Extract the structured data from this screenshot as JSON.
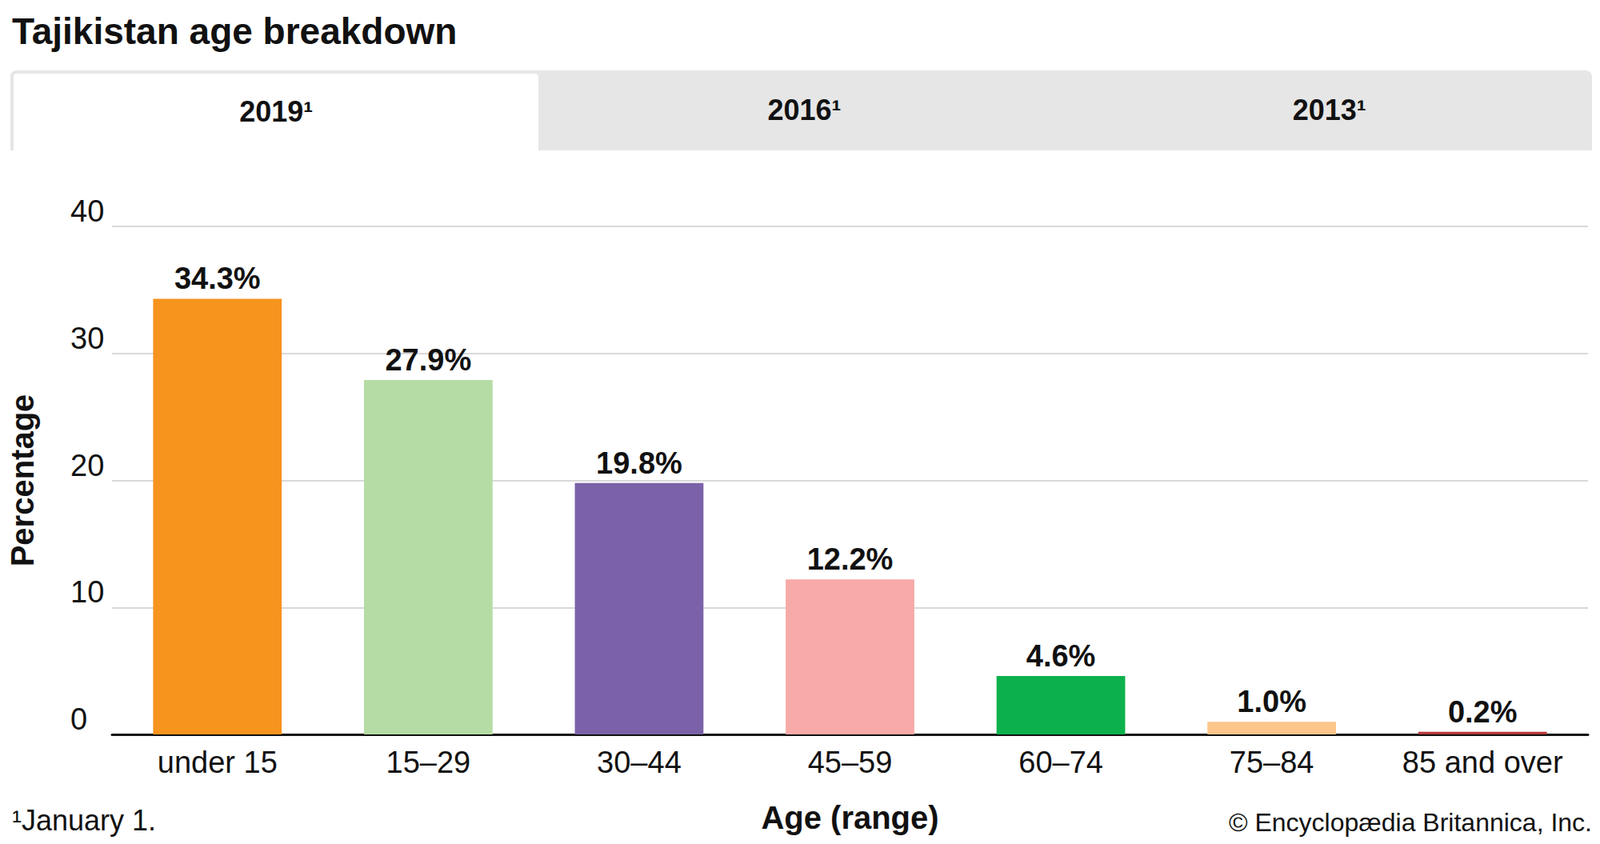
{
  "chart_data": {
    "type": "bar",
    "title": "Tajikistan age breakdown",
    "tabs": [
      "2019¹",
      "2016¹",
      "2013¹"
    ],
    "x_label": "Age (range)",
    "y_label": "Percentage",
    "categories": [
      "under 15",
      "15–29",
      "30–44",
      "45–59",
      "60–74",
      "75–84",
      "85 and over"
    ],
    "values": [
      34.3,
      27.9,
      19.8,
      12.2,
      4.6,
      1.0,
      0.2
    ],
    "value_labels": [
      "34.3%",
      "27.9%",
      "19.8%",
      "12.2%",
      "4.6%",
      "1.0%",
      "0.2%"
    ],
    "colors": [
      "#f7941d",
      "#b5dca5",
      "#7b62a8",
      "#f7aaa7",
      "#0db14b",
      "#fdc68a",
      "#b83a3a"
    ],
    "ylim": [
      0,
      40
    ],
    "yticks": [
      0,
      10,
      20,
      30,
      40
    ],
    "grid": true,
    "data_labels": true,
    "footnote": "¹January 1.",
    "source": "© Encyclopædia Britannica, Inc."
  }
}
